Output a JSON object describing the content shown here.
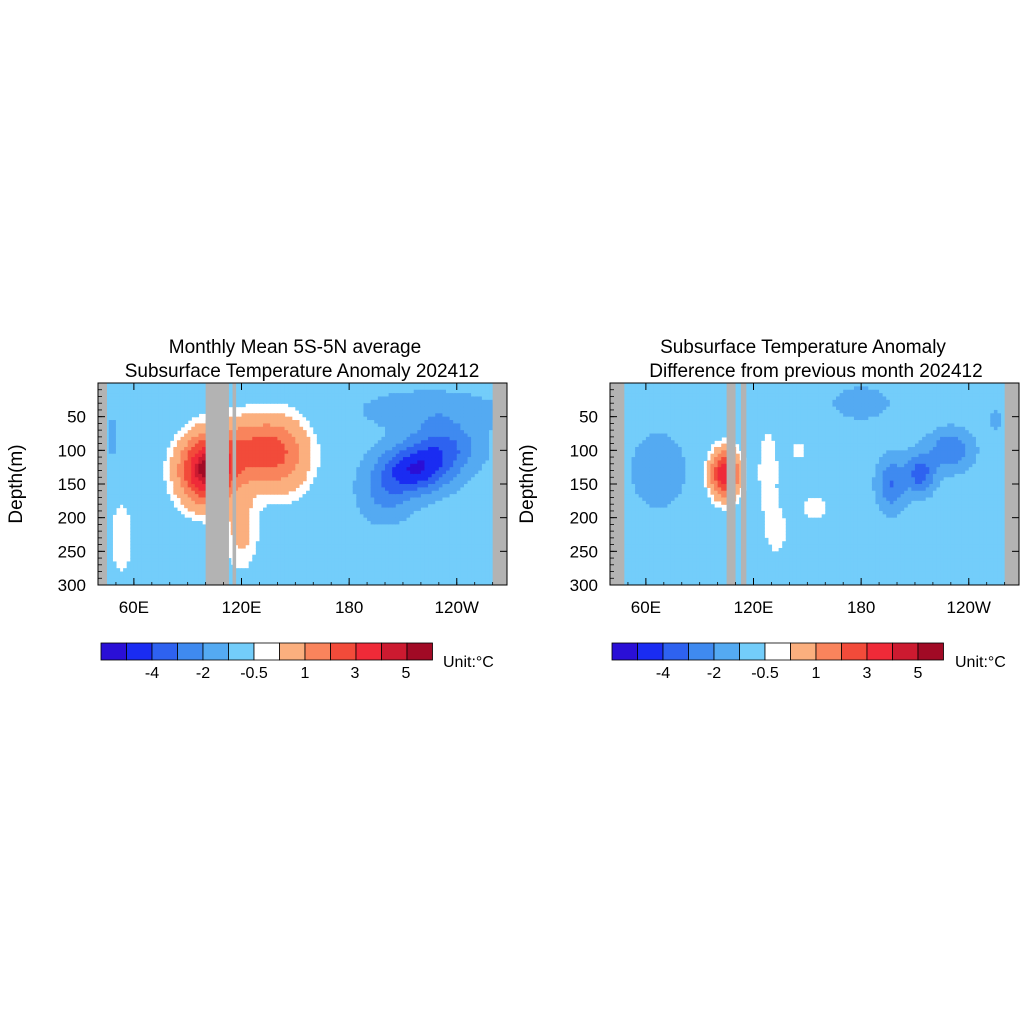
{
  "colors": {
    "land_mask": "#b3b3b3",
    "levels": [
      "#2a0fd6",
      "#1a2cf2",
      "#2e62f0",
      "#3f8af0",
      "#54aaf2",
      "#73cdfa",
      "#ffffff",
      "#fbaf7e",
      "#f9845c",
      "#f24b3a",
      "#ef2a38",
      "#cc1a30",
      "#a10a25"
    ]
  },
  "colorbar": {
    "labels": [
      "-4",
      "-2",
      "-0.5",
      "1",
      "3",
      "5"
    ],
    "unit": "Unit:°C"
  },
  "chart_data": [
    {
      "type": "heatmap",
      "title_line1": "Monthly Mean 5S-5N average",
      "title_line2": "Subsurface Temperature Anomaly 202412",
      "ylabel": "Depth(m)",
      "xlabel": "",
      "x_range_lon_east": [
        40,
        268
      ],
      "ylim": [
        0,
        300
      ],
      "y_reversed": true,
      "x_ticks": [
        "60E",
        "120E",
        "180",
        "120W"
      ],
      "x_tick_lon": [
        60,
        120,
        180,
        240
      ],
      "y_ticks": [
        50,
        100,
        150,
        200,
        250,
        300
      ],
      "land_mask_lon_ranges": [
        [
          40,
          45
        ],
        [
          100,
          113
        ],
        [
          115,
          117
        ],
        [
          260,
          268
        ]
      ],
      "features": [
        {
          "lon": 100,
          "depth": 130,
          "anomaly": 5.5,
          "lon_halfwidth": 15,
          "depth_halfwidth": 50
        },
        {
          "lon": 127,
          "depth": 100,
          "anomaly": 3,
          "lon_halfwidth": 22,
          "depth_halfwidth": 50
        },
        {
          "lon": 145,
          "depth": 110,
          "anomaly": 1.5,
          "lon_halfwidth": 15,
          "depth_halfwidth": 60
        },
        {
          "lon": 120,
          "depth": 220,
          "anomaly": 1.2,
          "lon_halfwidth": 10,
          "depth_halfwidth": 60
        },
        {
          "lon": 53,
          "depth": 230,
          "anomaly": 0.8,
          "lon_halfwidth": 8,
          "depth_halfwidth": 70
        },
        {
          "lon": 48,
          "depth": 80,
          "anomaly": -1.2,
          "lon_halfwidth": 3,
          "depth_halfwidth": 30
        },
        {
          "lon": 216,
          "depth": 130,
          "anomaly": -4,
          "lon_halfwidth": 20,
          "depth_halfwidth": 35
        },
        {
          "lon": 233,
          "depth": 95,
          "anomaly": -2.5,
          "lon_halfwidth": 20,
          "depth_halfwidth": 35
        },
        {
          "lon": 200,
          "depth": 170,
          "anomaly": -1.5,
          "lon_halfwidth": 15,
          "depth_halfwidth": 40
        },
        {
          "lon": 225,
          "depth": 40,
          "anomaly": -1.2,
          "lon_halfwidth": 40,
          "depth_halfwidth": 30
        }
      ]
    },
    {
      "type": "heatmap",
      "title_line1": "Subsurface Temperature Anomaly",
      "title_line2": "Difference from previous month 202412",
      "ylabel": "Depth(m)",
      "xlabel": "",
      "x_range_lon_east": [
        40,
        268
      ],
      "ylim": [
        0,
        300
      ],
      "y_reversed": true,
      "x_ticks": [
        "60E",
        "120E",
        "180",
        "120W"
      ],
      "x_tick_lon": [
        60,
        120,
        180,
        240
      ],
      "y_ticks": [
        50,
        100,
        150,
        200,
        250,
        300
      ],
      "land_mask_lon_ranges": [
        [
          40,
          48
        ],
        [
          105,
          110
        ],
        [
          113,
          116
        ],
        [
          260,
          268
        ]
      ],
      "features": [
        {
          "lon": 104,
          "depth": 135,
          "anomaly": 5,
          "lon_halfwidth": 8,
          "depth_halfwidth": 35
        },
        {
          "lon": 67,
          "depth": 130,
          "anomaly": -1.2,
          "lon_halfwidth": 16,
          "depth_halfwidth": 60
        },
        {
          "lon": 128,
          "depth": 130,
          "anomaly": 1,
          "lon_halfwidth": 6,
          "depth_halfwidth": 70
        },
        {
          "lon": 133,
          "depth": 220,
          "anomaly": 0.8,
          "lon_halfwidth": 7,
          "depth_halfwidth": 40
        },
        {
          "lon": 154,
          "depth": 185,
          "anomaly": 0.8,
          "lon_halfwidth": 10,
          "depth_halfwidth": 25
        },
        {
          "lon": 145,
          "depth": 100,
          "anomaly": 0.6,
          "lon_halfwidth": 7,
          "depth_halfwidth": 25
        },
        {
          "lon": 197,
          "depth": 150,
          "anomaly": -2.5,
          "lon_halfwidth": 8,
          "depth_halfwidth": 40
        },
        {
          "lon": 213,
          "depth": 135,
          "anomaly": -3,
          "lon_halfwidth": 8,
          "depth_halfwidth": 30
        },
        {
          "lon": 230,
          "depth": 100,
          "anomaly": -2.5,
          "lon_halfwidth": 12,
          "depth_halfwidth": 30
        },
        {
          "lon": 180,
          "depth": 30,
          "anomaly": -0.9,
          "lon_halfwidth": 20,
          "depth_halfwidth": 30
        },
        {
          "lon": 255,
          "depth": 55,
          "anomaly": -1.5,
          "lon_halfwidth": 3,
          "depth_halfwidth": 15
        }
      ]
    }
  ]
}
